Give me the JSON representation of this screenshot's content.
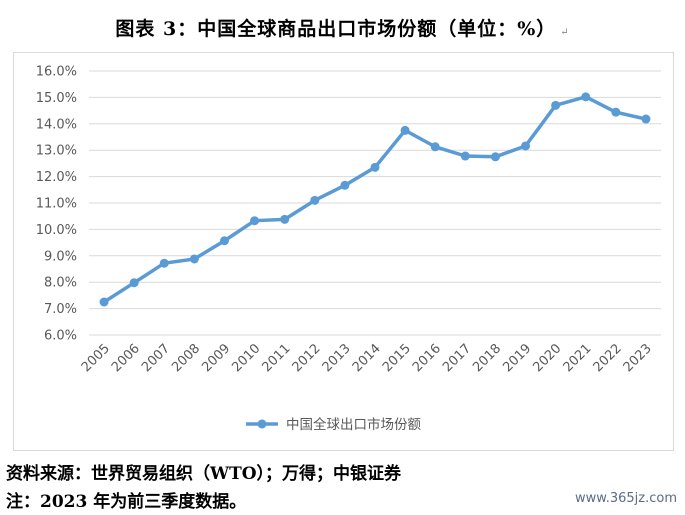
{
  "title": "图表 3：中国全球商品出口市场份额（单位：%）",
  "title_mark": "↵",
  "source_line": "资料来源：世界贸易组织（WTO）；万得；中银证券",
  "note_line": "注：2023 年为前三季度数据。",
  "watermark": "www.365jz.com",
  "colors": {
    "series": "#5b9bd5",
    "grid": "#d9d9d9",
    "text": "#595959"
  },
  "chart_data": {
    "type": "line",
    "title": "图表 3：中国全球商品出口市场份额（单位：%）",
    "xlabel": "",
    "ylabel": "",
    "x": [
      "2005",
      "2006",
      "2007",
      "2008",
      "2009",
      "2010",
      "2011",
      "2012",
      "2013",
      "2014",
      "2015",
      "2016",
      "2017",
      "2018",
      "2019",
      "2020",
      "2021",
      "2022",
      "2023"
    ],
    "series": [
      {
        "name": "中国全球出口市场份额",
        "values": [
          7.25,
          7.98,
          8.72,
          8.88,
          9.57,
          10.33,
          10.38,
          11.1,
          11.67,
          12.35,
          13.75,
          13.13,
          12.78,
          12.75,
          13.16,
          14.7,
          15.02,
          14.44,
          14.18
        ]
      }
    ],
    "ylim": [
      6.0,
      16.0
    ],
    "yticks": [
      "6.0%",
      "7.0%",
      "8.0%",
      "9.0%",
      "10.0%",
      "11.0%",
      "12.0%",
      "13.0%",
      "14.0%",
      "15.0%",
      "16.0%"
    ],
    "grid": true,
    "legend": "bottom-center"
  }
}
